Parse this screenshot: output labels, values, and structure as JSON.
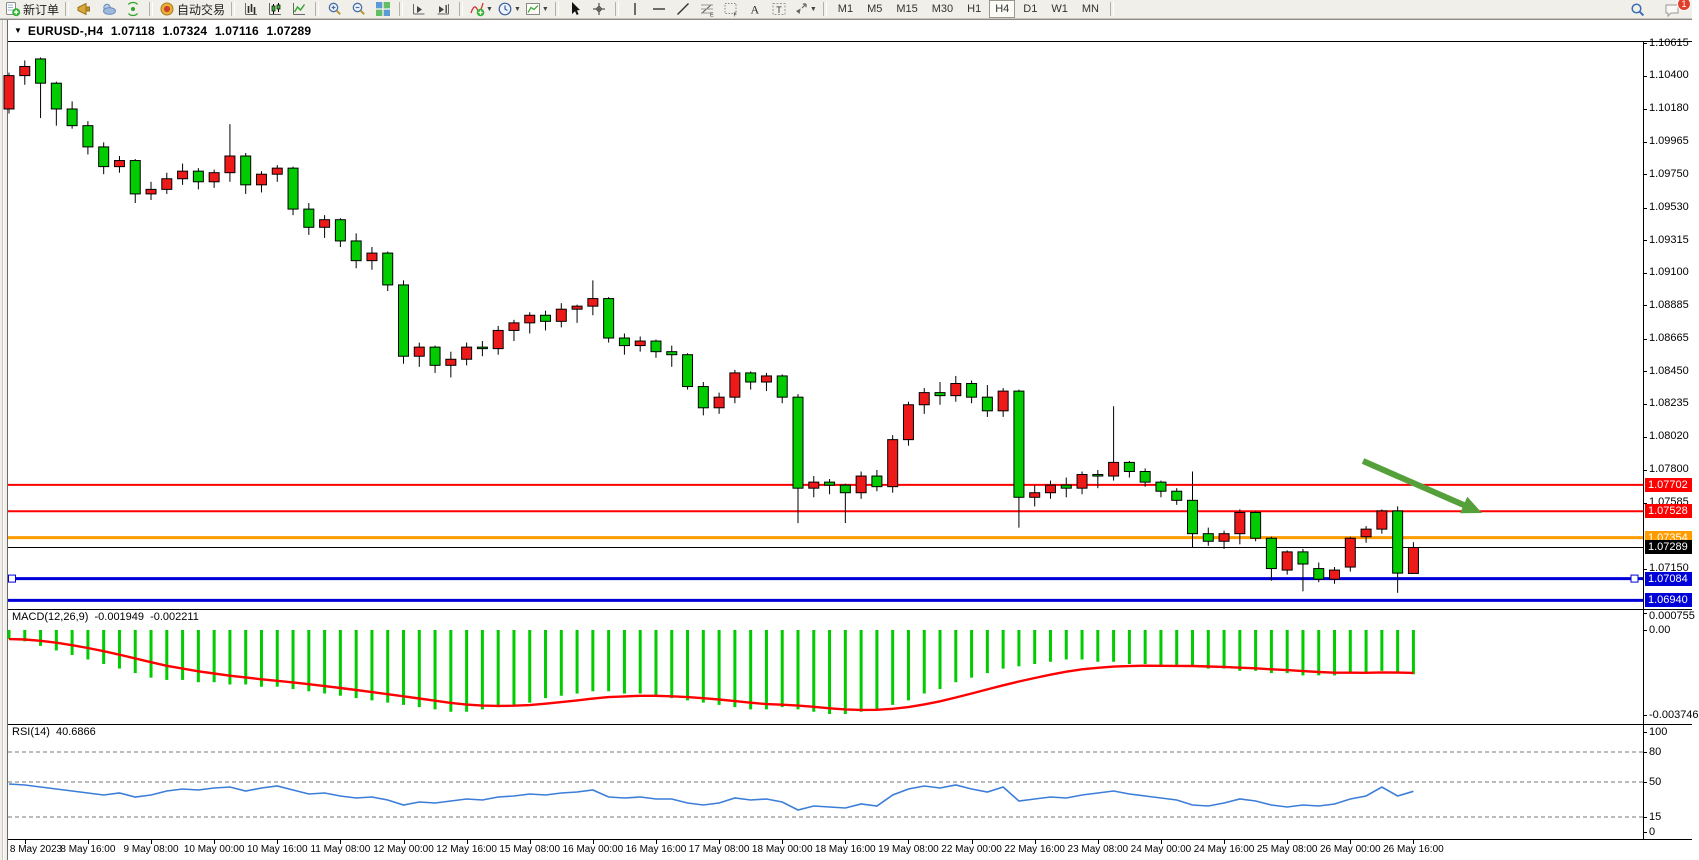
{
  "toolbar": {
    "new_order_label": "新订单",
    "auto_trading_label": "自动交易",
    "timeframes": [
      "M1",
      "M5",
      "M15",
      "M30",
      "H1",
      "H4",
      "D1",
      "W1",
      "MN"
    ],
    "active_timeframe": "H4",
    "notification_count": "1",
    "groups": [
      [
        {
          "icon": "new-order",
          "label": "新订单"
        }
      ],
      [
        {
          "icon": "horn"
        },
        {
          "icon": "cloud"
        },
        {
          "icon": "signal"
        }
      ],
      [
        {
          "icon": "auto-trading",
          "label": "自动交易"
        }
      ],
      [
        {
          "icon": "bar-chart"
        },
        {
          "icon": "candle-chart"
        },
        {
          "icon": "line-chart"
        }
      ],
      [
        {
          "icon": "zoom-in"
        },
        {
          "icon": "zoom-out"
        },
        {
          "icon": "tile-windows"
        }
      ],
      [
        {
          "icon": "auto-scroll"
        },
        {
          "icon": "chart-shift"
        }
      ],
      [
        {
          "icon": "indicators",
          "dd": true
        },
        {
          "icon": "periods",
          "dd": true
        },
        {
          "icon": "templates",
          "dd": true
        }
      ],
      [
        {
          "icon": "cursor"
        },
        {
          "icon": "crosshair"
        }
      ],
      [
        {
          "icon": "vertical-line"
        },
        {
          "icon": "horizontal-line"
        },
        {
          "icon": "trendline"
        },
        {
          "icon": "fibonacci"
        },
        {
          "icon": "grid"
        },
        {
          "icon": "text"
        },
        {
          "icon": "text-label"
        },
        {
          "icon": "arrows",
          "dd": true
        }
      ]
    ]
  },
  "chart": {
    "title": {
      "symbol": "EURUSD-,H4",
      "open": "1.07118",
      "high": "1.07324",
      "low": "1.07116",
      "close": "1.07289"
    },
    "price_axis_ticks": [
      "1.10615",
      "1.10400",
      "1.10180",
      "1.09965",
      "1.09750",
      "1.09530",
      "1.09315",
      "1.09100",
      "1.08885",
      "1.08665",
      "1.08450",
      "1.08235",
      "1.08020",
      "1.07800",
      "1.07585",
      "1.07150"
    ]
  },
  "chart_data": {
    "type": "candlestick",
    "symbol": "EURUSD-",
    "timeframe": "H4",
    "title": "EURUSD-,H4  1.07118 1.07324 1.07116 1.07289",
    "ylim": [
      1.069,
      1.1065
    ],
    "grid": false,
    "time_labels": [
      "8 May 2023",
      "8 May 16:00",
      "9 May 08:00",
      "10 May 00:00",
      "10 May 16:00",
      "11 May 08:00",
      "12 May 00:00",
      "12 May 16:00",
      "15 May 08:00",
      "16 May 00:00",
      "16 May 16:00",
      "17 May 08:00",
      "18 May 00:00",
      "18 May 16:00",
      "19 May 08:00",
      "22 May 00:00",
      "22 May 16:00",
      "23 May 08:00",
      "24 May 00:00",
      "24 May 16:00",
      "25 May 08:00",
      "26 May 00:00",
      "26 May 16:00"
    ],
    "ohlc": [
      [
        1.1018,
        1.1042,
        1.1015,
        1.104
      ],
      [
        1.104,
        1.105,
        1.1034,
        1.1046
      ],
      [
        1.1051,
        1.1052,
        1.1012,
        1.1035
      ],
      [
        1.1035,
        1.1036,
        1.1007,
        1.1018
      ],
      [
        1.1018,
        1.1023,
        1.1005,
        1.1007
      ],
      [
        1.1007,
        1.101,
        1.0988,
        1.0993
      ],
      [
        1.0993,
        1.0996,
        1.0975,
        1.098
      ],
      [
        1.098,
        1.0987,
        1.0976,
        1.0984
      ],
      [
        1.0984,
        1.0985,
        1.0956,
        1.0962
      ],
      [
        1.0962,
        1.097,
        1.0958,
        1.0965
      ],
      [
        1.0965,
        1.0976,
        1.0962,
        1.0972
      ],
      [
        1.0972,
        1.0982,
        1.0968,
        1.0977
      ],
      [
        1.0977,
        1.0979,
        1.0965,
        1.097
      ],
      [
        1.097,
        1.0978,
        1.0966,
        1.0976
      ],
      [
        1.0976,
        1.1008,
        1.097,
        1.0987
      ],
      [
        1.0987,
        1.0989,
        1.0962,
        1.0968
      ],
      [
        1.0968,
        1.0977,
        1.0963,
        1.0975
      ],
      [
        1.0975,
        1.0981,
        1.097,
        1.0979
      ],
      [
        1.0979,
        1.098,
        1.0948,
        1.0952
      ],
      [
        1.0952,
        1.0956,
        1.0935,
        1.094
      ],
      [
        1.094,
        1.0948,
        1.0933,
        1.0945
      ],
      [
        1.0945,
        1.0946,
        1.0927,
        1.0931
      ],
      [
        1.0931,
        1.0936,
        1.0913,
        1.0918
      ],
      [
        1.0918,
        1.0927,
        1.0912,
        1.0923
      ],
      [
        1.0923,
        1.0924,
        1.0898,
        1.0902
      ],
      [
        1.0902,
        1.0905,
        1.085,
        1.0855
      ],
      [
        1.0855,
        1.0864,
        1.0848,
        1.0861
      ],
      [
        1.0861,
        1.0862,
        1.0844,
        1.0849
      ],
      [
        1.0849,
        1.0858,
        1.0841,
        1.0853
      ],
      [
        1.0853,
        1.0864,
        1.0849,
        1.0861
      ],
      [
        1.0861,
        1.0865,
        1.0855,
        1.086
      ],
      [
        1.086,
        1.0875,
        1.0856,
        1.0872
      ],
      [
        1.0872,
        1.0879,
        1.0865,
        1.0877
      ],
      [
        1.0877,
        1.0884,
        1.087,
        1.0882
      ],
      [
        1.0882,
        1.0885,
        1.0872,
        1.0878
      ],
      [
        1.0878,
        1.089,
        1.0874,
        1.0886
      ],
      [
        1.0886,
        1.0889,
        1.0877,
        1.0888
      ],
      [
        1.0888,
        1.0905,
        1.0882,
        1.0893
      ],
      [
        1.0893,
        1.0894,
        1.0864,
        1.0867
      ],
      [
        1.0867,
        1.087,
        1.0856,
        1.0862
      ],
      [
        1.0862,
        1.0868,
        1.0858,
        1.0865
      ],
      [
        1.0865,
        1.0866,
        1.0854,
        1.0858
      ],
      [
        1.0858,
        1.0862,
        1.0848,
        1.0856
      ],
      [
        1.0856,
        1.0857,
        1.0833,
        1.0835
      ],
      [
        1.0835,
        1.0838,
        1.0816,
        1.0821
      ],
      [
        1.0821,
        1.0831,
        1.0817,
        1.0828
      ],
      [
        1.0828,
        1.0846,
        1.0824,
        1.0844
      ],
      [
        1.0844,
        1.0845,
        1.0833,
        1.0838
      ],
      [
        1.0838,
        1.0844,
        1.0832,
        1.0842
      ],
      [
        1.0842,
        1.0843,
        1.0824,
        1.0828
      ],
      [
        1.0828,
        1.083,
        1.0745,
        1.0768
      ],
      [
        1.0768,
        1.0776,
        1.0762,
        1.0772
      ],
      [
        1.0772,
        1.0774,
        1.0764,
        1.077
      ],
      [
        1.077,
        1.0771,
        1.0745,
        1.0765
      ],
      [
        1.0765,
        1.0779,
        1.0761,
        1.0776
      ],
      [
        1.0776,
        1.078,
        1.0766,
        1.0769
      ],
      [
        1.0769,
        1.0803,
        1.0765,
        1.08
      ],
      [
        1.08,
        1.0825,
        1.0796,
        1.0823
      ],
      [
        1.0823,
        1.0834,
        1.0817,
        1.0831
      ],
      [
        1.0831,
        1.0838,
        1.0823,
        1.0829
      ],
      [
        1.0829,
        1.0842,
        1.0825,
        1.0837
      ],
      [
        1.0837,
        1.0839,
        1.0824,
        1.0828
      ],
      [
        1.0828,
        1.0836,
        1.0815,
        1.0819
      ],
      [
        1.0819,
        1.0834,
        1.0815,
        1.0832
      ],
      [
        1.0832,
        1.0833,
        1.0742,
        1.0762
      ],
      [
        1.0762,
        1.077,
        1.0756,
        1.0765
      ],
      [
        1.0765,
        1.0773,
        1.0761,
        1.077
      ],
      [
        1.077,
        1.0775,
        1.0762,
        1.0768
      ],
      [
        1.0768,
        1.0779,
        1.0764,
        1.0777
      ],
      [
        1.0777,
        1.078,
        1.0768,
        1.0776
      ],
      [
        1.0776,
        1.0822,
        1.0773,
        1.0785
      ],
      [
        1.0785,
        1.0786,
        1.0775,
        1.0779
      ],
      [
        1.0779,
        1.0781,
        1.0769,
        1.0772
      ],
      [
        1.0772,
        1.0773,
        1.0762,
        1.0766
      ],
      [
        1.0766,
        1.0768,
        1.0757,
        1.076
      ],
      [
        1.076,
        1.0779,
        1.0729,
        1.0738
      ],
      [
        1.0738,
        1.0742,
        1.073,
        1.0733
      ],
      [
        1.0733,
        1.074,
        1.0728,
        1.0738
      ],
      [
        1.0738,
        1.0754,
        1.0731,
        1.0752
      ],
      [
        1.0752,
        1.0753,
        1.0733,
        1.0735
      ],
      [
        1.0735,
        1.0736,
        1.0707,
        1.0715
      ],
      [
        1.0714,
        1.0727,
        1.0711,
        1.0726
      ],
      [
        1.0726,
        1.0728,
        1.07,
        1.0718
      ],
      [
        1.0715,
        1.0719,
        1.0706,
        1.0708
      ],
      [
        1.0708,
        1.0716,
        1.0705,
        1.0714
      ],
      [
        1.0716,
        1.0736,
        1.0713,
        1.0735
      ],
      [
        1.0736,
        1.0743,
        1.0732,
        1.0741
      ],
      [
        1.0741,
        1.0754,
        1.0738,
        1.0753
      ],
      [
        1.0753,
        1.0756,
        1.0699,
        1.0712
      ],
      [
        1.07118,
        1.07324,
        1.07116,
        1.07289
      ]
    ],
    "levels": [
      {
        "price": "1.07702",
        "color": "#ff0000",
        "width": 2
      },
      {
        "price": "1.07528",
        "color": "#ff0000",
        "width": 2
      },
      {
        "price": "1.07354",
        "color": "#ff9c00",
        "width": 3
      },
      {
        "price": "1.07289",
        "color": "#000000",
        "width": 1
      },
      {
        "price": "1.07084",
        "color": "#0000d8",
        "width": 3,
        "selected": true
      },
      {
        "price": "1.06940",
        "color": "#0000d8",
        "width": 3
      }
    ],
    "annotations": [
      {
        "type": "arrow",
        "color": "#55a03a",
        "x1": 1363,
        "y1": 460,
        "x2": 1482,
        "y2": 512
      }
    ],
    "macd": {
      "label": "MACD(12,26,9)",
      "main": "-0.001949",
      "signal": "-0.002211",
      "axis_max": "0.000755",
      "axis_zero": "0.00",
      "axis_min": "-0.003746",
      "histogram_color": "#00cc00",
      "signal_color": "#ff0000"
    },
    "macd_histogram": [
      -0.0004,
      -0.0005,
      -0.0007,
      -0.0009,
      -0.0011,
      -0.0013,
      -0.0015,
      -0.0017,
      -0.0019,
      -0.0021,
      -0.0022,
      -0.0022,
      -0.0023,
      -0.0023,
      -0.0024,
      -0.0024,
      -0.0025,
      -0.0025,
      -0.0026,
      -0.0027,
      -0.0028,
      -0.0029,
      -0.003,
      -0.0031,
      -0.0032,
      -0.0033,
      -0.0034,
      -0.0035,
      -0.0036,
      -0.0036,
      -0.0035,
      -0.0034,
      -0.0033,
      -0.0032,
      -0.003,
      -0.0029,
      -0.0028,
      -0.0027,
      -0.0027,
      -0.0028,
      -0.0028,
      -0.0029,
      -0.003,
      -0.0031,
      -0.0032,
      -0.0033,
      -0.0034,
      -0.0035,
      -0.0035,
      -0.0034,
      -0.0035,
      -0.0036,
      -0.0037,
      -0.0037,
      -0.0036,
      -0.0035,
      -0.0033,
      -0.0031,
      -0.0028,
      -0.0026,
      -0.0023,
      -0.0021,
      -0.0019,
      -0.0017,
      -0.0016,
      -0.0015,
      -0.0014,
      -0.0013,
      -0.0013,
      -0.0014,
      -0.0014,
      -0.0015,
      -0.0015,
      -0.0016,
      -0.0016,
      -0.0016,
      -0.0017,
      -0.0017,
      -0.0018,
      -0.0018,
      -0.0019,
      -0.0019,
      -0.002,
      -0.002,
      -0.002,
      -0.0019,
      -0.0019,
      -0.0018,
      -0.0019,
      -0.001949
    ],
    "rsi": {
      "label": "RSI(14)",
      "value": "40.6866",
      "levels": [
        "100",
        "80",
        "50",
        "15",
        "0"
      ],
      "line_color": "#3b7dd8"
    },
    "rsi_values": [
      48,
      47,
      45,
      43,
      41,
      39,
      37,
      39,
      35,
      37,
      41,
      43,
      42,
      44,
      45,
      41,
      44,
      46,
      42,
      38,
      39,
      36,
      34,
      35,
      32,
      27,
      30,
      29,
      31,
      33,
      32,
      35,
      36,
      38,
      37,
      39,
      40,
      42,
      35,
      34,
      35,
      33,
      33,
      29,
      27,
      29,
      34,
      32,
      33,
      30,
      22,
      26,
      25,
      24,
      28,
      26,
      37,
      43,
      46,
      44,
      47,
      43,
      40,
      45,
      31,
      33,
      35,
      34,
      37,
      39,
      41,
      38,
      36,
      34,
      32,
      27,
      26,
      29,
      33,
      31,
      27,
      25,
      27,
      26,
      28,
      33,
      36,
      45,
      36,
      40.6866
    ],
    "colors": {
      "up_candle": "#ee1a1a",
      "down_candle": "#00cc00",
      "candle_border": "#000000",
      "wick": "#000000"
    }
  }
}
